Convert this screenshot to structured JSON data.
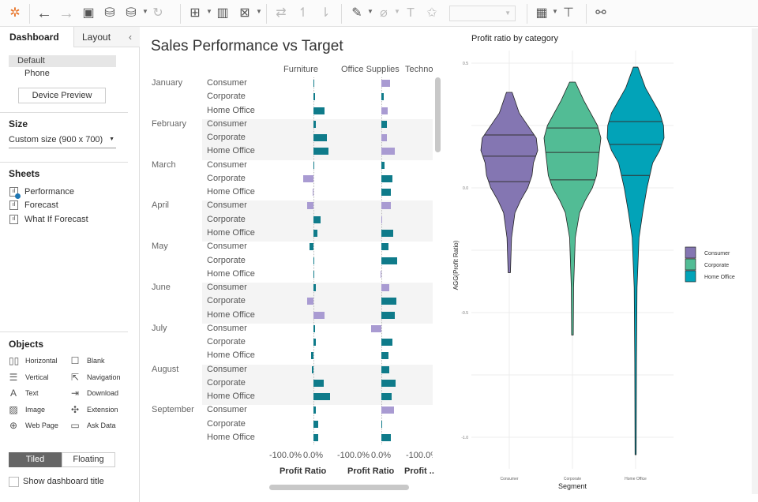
{
  "toolbar": {
    "icons": [
      "tableau-logo-icon",
      "undo-icon",
      "redo-icon",
      "save-icon",
      "new-datasource-icon",
      "pause-updates-icon",
      "refresh-icon",
      "new-worksheet-icon",
      "duplicate-sheet-icon",
      "clear-sheet-icon",
      "swap-icon",
      "sort-ascending-icon",
      "sort-descending-icon",
      "highlight-icon",
      "group-icon",
      "label-icon",
      "pin-icon",
      "show-me-icon",
      "presentation-icon",
      "share-icon"
    ]
  },
  "left_panel": {
    "tabs": [
      "Dashboard",
      "Layout"
    ],
    "devices": [
      "Default",
      "Phone"
    ],
    "device_preview": "Device Preview",
    "size_heading": "Size",
    "size_value": "Custom size (900 x 700)",
    "sheets_heading": "Sheets",
    "sheets": [
      "Performance",
      "Forecast",
      "What If Forecast"
    ],
    "objects_heading": "Objects",
    "objects": [
      {
        "label": "Horizontal",
        "icon": "horizontal-icon"
      },
      {
        "label": "Blank",
        "icon": "blank-icon"
      },
      {
        "label": "Vertical",
        "icon": "vertical-icon"
      },
      {
        "label": "Navigation",
        "icon": "navigation-icon"
      },
      {
        "label": "Text",
        "icon": "text-icon"
      },
      {
        "label": "Download",
        "icon": "download-icon"
      },
      {
        "label": "Image",
        "icon": "image-icon"
      },
      {
        "label": "Extension",
        "icon": "extension-icon"
      },
      {
        "label": "Web Page",
        "icon": "globe-icon"
      },
      {
        "label": "Ask Data",
        "icon": "ask-data-icon"
      }
    ],
    "tiled": "Tiled",
    "floating": "Floating",
    "show_title": "Show dashboard title"
  },
  "dashboard_title": "Sales Performance vs Target",
  "chart_data": [
    {
      "type": "bar",
      "columns": [
        "Furniture",
        "Office Supplies",
        "Techno"
      ],
      "months": [
        "January",
        "February",
        "March",
        "April",
        "May",
        "June",
        "July",
        "August",
        "September"
      ],
      "segments": [
        "Consumer",
        "Corporate",
        "Home Office"
      ],
      "xlabel": "Profit Ratio",
      "xlabel_truncated": "Profit ..",
      "ticks": [
        "-100.0%",
        "0.0%"
      ],
      "colors": {
        "teal": "#0f7b8a",
        "purple": "#a99bd2"
      },
      "furniture": [
        [
          1,
          "t"
        ],
        [
          5,
          "t"
        ],
        [
          40,
          "t"
        ],
        [
          9,
          "t"
        ],
        [
          48,
          "t"
        ],
        [
          52,
          "t"
        ],
        [
          1,
          "t"
        ],
        [
          -37,
          "p"
        ],
        [
          -1,
          "p"
        ],
        [
          -23,
          "p"
        ],
        [
          26,
          "t"
        ],
        [
          14,
          "t"
        ],
        [
          -15,
          "t"
        ],
        [
          1,
          "t"
        ],
        [
          0,
          "t"
        ],
        [
          7,
          "t"
        ],
        [
          -23,
          "p"
        ],
        [
          40,
          "p"
        ],
        [
          5,
          "t"
        ],
        [
          9,
          "t"
        ],
        [
          -8,
          "t"
        ],
        [
          -6,
          "t"
        ],
        [
          35,
          "t"
        ],
        [
          59,
          "t"
        ],
        [
          9,
          "t"
        ],
        [
          17,
          "t"
        ],
        [
          17,
          "t"
        ]
      ],
      "office_supplies": [
        [
          30,
          "p"
        ],
        [
          7,
          "t"
        ],
        [
          21,
          "p"
        ],
        [
          19,
          "t"
        ],
        [
          19,
          "p"
        ],
        [
          48,
          "p"
        ],
        [
          10,
          "t"
        ],
        [
          38,
          "t"
        ],
        [
          34,
          "t"
        ],
        [
          34,
          "p"
        ],
        [
          4,
          "p"
        ],
        [
          42,
          "t"
        ],
        [
          24,
          "t"
        ],
        [
          55,
          "t"
        ],
        [
          -3,
          "p"
        ],
        [
          29,
          "p"
        ],
        [
          54,
          "t"
        ],
        [
          46,
          "t"
        ],
        [
          -35,
          "p"
        ],
        [
          38,
          "t"
        ],
        [
          25,
          "t"
        ],
        [
          29,
          "t"
        ],
        [
          51,
          "t"
        ],
        [
          37,
          "t"
        ],
        [
          44,
          "p"
        ],
        [
          4,
          "t"
        ],
        [
          34,
          "t"
        ]
      ]
    },
    {
      "type": "violin",
      "title": "Profit ratio by category",
      "xlabel": "Segment",
      "ylabel": "AGG(Profit Ratio)",
      "yticks": [
        "0.5",
        "0.0",
        "-0.5",
        "-1.0"
      ],
      "ylim": [
        -1.15,
        0.55
      ],
      "legend": "right",
      "series": [
        {
          "name": "Consumer",
          "color": "#8476b2",
          "quartiles": [
            0.025,
            0.127,
            0.212
          ],
          "density": [
            [
              0.383,
              0.1
            ],
            [
              0.3,
              0.35
            ],
            [
              0.2,
              0.95
            ],
            [
              0.15,
              1.0
            ],
            [
              0.1,
              0.85
            ],
            [
              0.05,
              0.8
            ],
            [
              0.0,
              0.65
            ],
            [
              -0.05,
              0.4
            ],
            [
              -0.1,
              0.2
            ],
            [
              -0.2,
              0.08
            ],
            [
              -0.34,
              0.04
            ]
          ]
        },
        {
          "name": "Corporate",
          "color": "#52bc95",
          "quartiles": [
            0.032,
            0.142,
            0.24
          ],
          "density": [
            [
              0.424,
              0.1
            ],
            [
              0.35,
              0.4
            ],
            [
              0.25,
              0.88
            ],
            [
              0.2,
              1.0
            ],
            [
              0.15,
              0.95
            ],
            [
              0.05,
              0.85
            ],
            [
              0.0,
              0.7
            ],
            [
              -0.05,
              0.45
            ],
            [
              -0.1,
              0.25
            ],
            [
              -0.2,
              0.1
            ],
            [
              -0.4,
              0.04
            ],
            [
              -0.59,
              0.03
            ]
          ]
        },
        {
          "name": "Home Office",
          "color": "#02a3b8",
          "quartiles": [
            0.05,
            0.174,
            0.266
          ],
          "density": [
            [
              0.484,
              0.08
            ],
            [
              0.4,
              0.35
            ],
            [
              0.3,
              0.85
            ],
            [
              0.25,
              0.98
            ],
            [
              0.2,
              1.0
            ],
            [
              0.15,
              0.85
            ],
            [
              0.1,
              0.6
            ],
            [
              0.0,
              0.4
            ],
            [
              -0.1,
              0.25
            ],
            [
              -0.2,
              0.12
            ],
            [
              -0.4,
              0.05
            ],
            [
              -0.7,
              0.03
            ],
            [
              -1.07,
              0.02
            ]
          ]
        }
      ]
    }
  ]
}
